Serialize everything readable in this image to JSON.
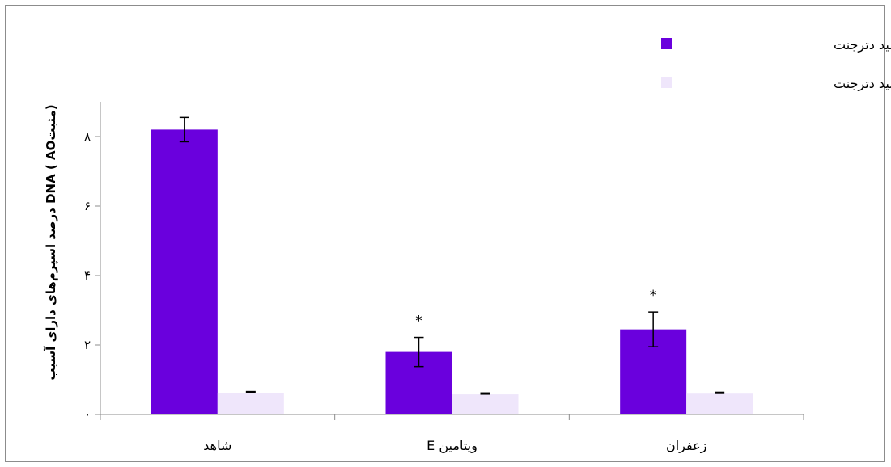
{
  "chart_data": {
    "type": "bar",
    "categories": [
      "شاهد",
      "ویتامین  E",
      "زعفران"
    ],
    "series": [
      {
        "name": "با اسید دترجنت",
        "color": "#6a00dd",
        "values": [
          8.2,
          1.8,
          2.45
        ],
        "errors": [
          0.35,
          0.42,
          0.5
        ]
      },
      {
        "name": "بدون اسید دترجنت",
        "color": "#efe6fb",
        "values": [
          0.62,
          0.58,
          0.6
        ],
        "errors": [
          0.03,
          0.03,
          0.03
        ]
      }
    ],
    "significance": [
      "",
      "*",
      "*"
    ],
    "ylabel": "درصد اسپرم‌های دارای آسیب DNA ( AOمثبت)",
    "ylim": [
      0,
      9
    ],
    "yticks": [
      {
        "value": 0,
        "label": "۰"
      },
      {
        "value": 2,
        "label": "۲"
      },
      {
        "value": 4,
        "label": "۴"
      },
      {
        "value": 6,
        "label": "۶"
      },
      {
        "value": 8,
        "label": "۸"
      }
    ],
    "grid": false,
    "legend_position": "top-right"
  }
}
